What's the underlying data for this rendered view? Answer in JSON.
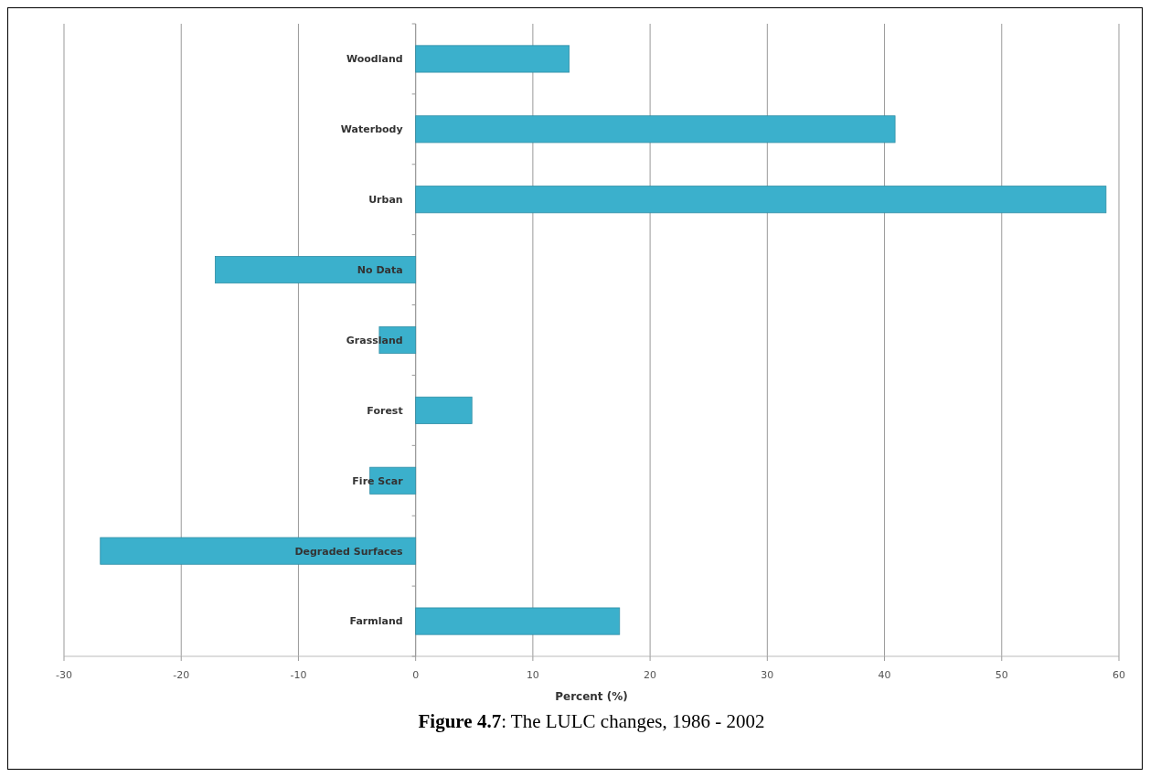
{
  "chart_data": {
    "type": "bar",
    "orientation": "horizontal",
    "xlabel": "Percent (%)",
    "title": "Figure 4.7: The LULC changes, 1986 - 2002",
    "categories": [
      "Woodland",
      "Waterbody",
      "Urban",
      "No Data",
      "Grassland",
      "Forest",
      "Fire Scar",
      "Degraded Surfaces",
      "Farmland"
    ],
    "values": [
      13.1,
      40.9,
      58.9,
      -17.1,
      -3.1,
      4.8,
      -3.9,
      -26.9,
      17.4
    ],
    "color": "#3bb0cc",
    "xlim": [
      -30,
      60
    ],
    "xticks": [
      -30,
      -20,
      -10,
      0,
      10,
      20,
      30,
      40,
      50,
      60
    ],
    "grid": "x"
  }
}
